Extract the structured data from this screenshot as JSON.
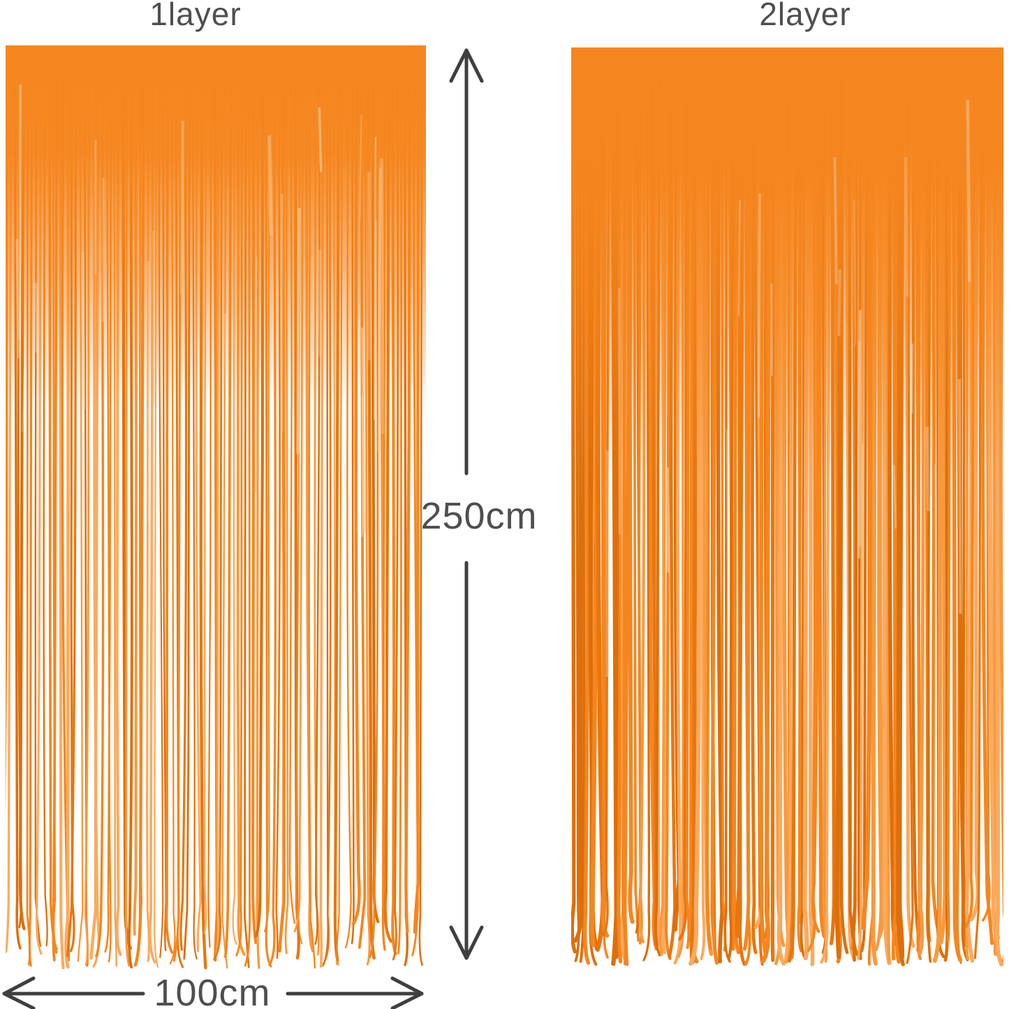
{
  "figure": {
    "type": "product-dimension-photo",
    "background": "#ffffff",
    "curtains": [
      {
        "label": "1layer",
        "layers": 1
      },
      {
        "label": "2layer",
        "layers": 2
      }
    ],
    "dimensions": {
      "height": "250cm",
      "width": "100cm"
    },
    "colors": {
      "foil_base": "#f5861f",
      "foil_dark": "#e8760e",
      "foil_deep": "#dd6f0b",
      "foil_mid": "#f79a3e",
      "foil_light": "#fbaa5e",
      "foil_pale": "#fdc98f",
      "label_text": "#4f4f4f",
      "dimension_line": "#3f3f3f"
    }
  }
}
